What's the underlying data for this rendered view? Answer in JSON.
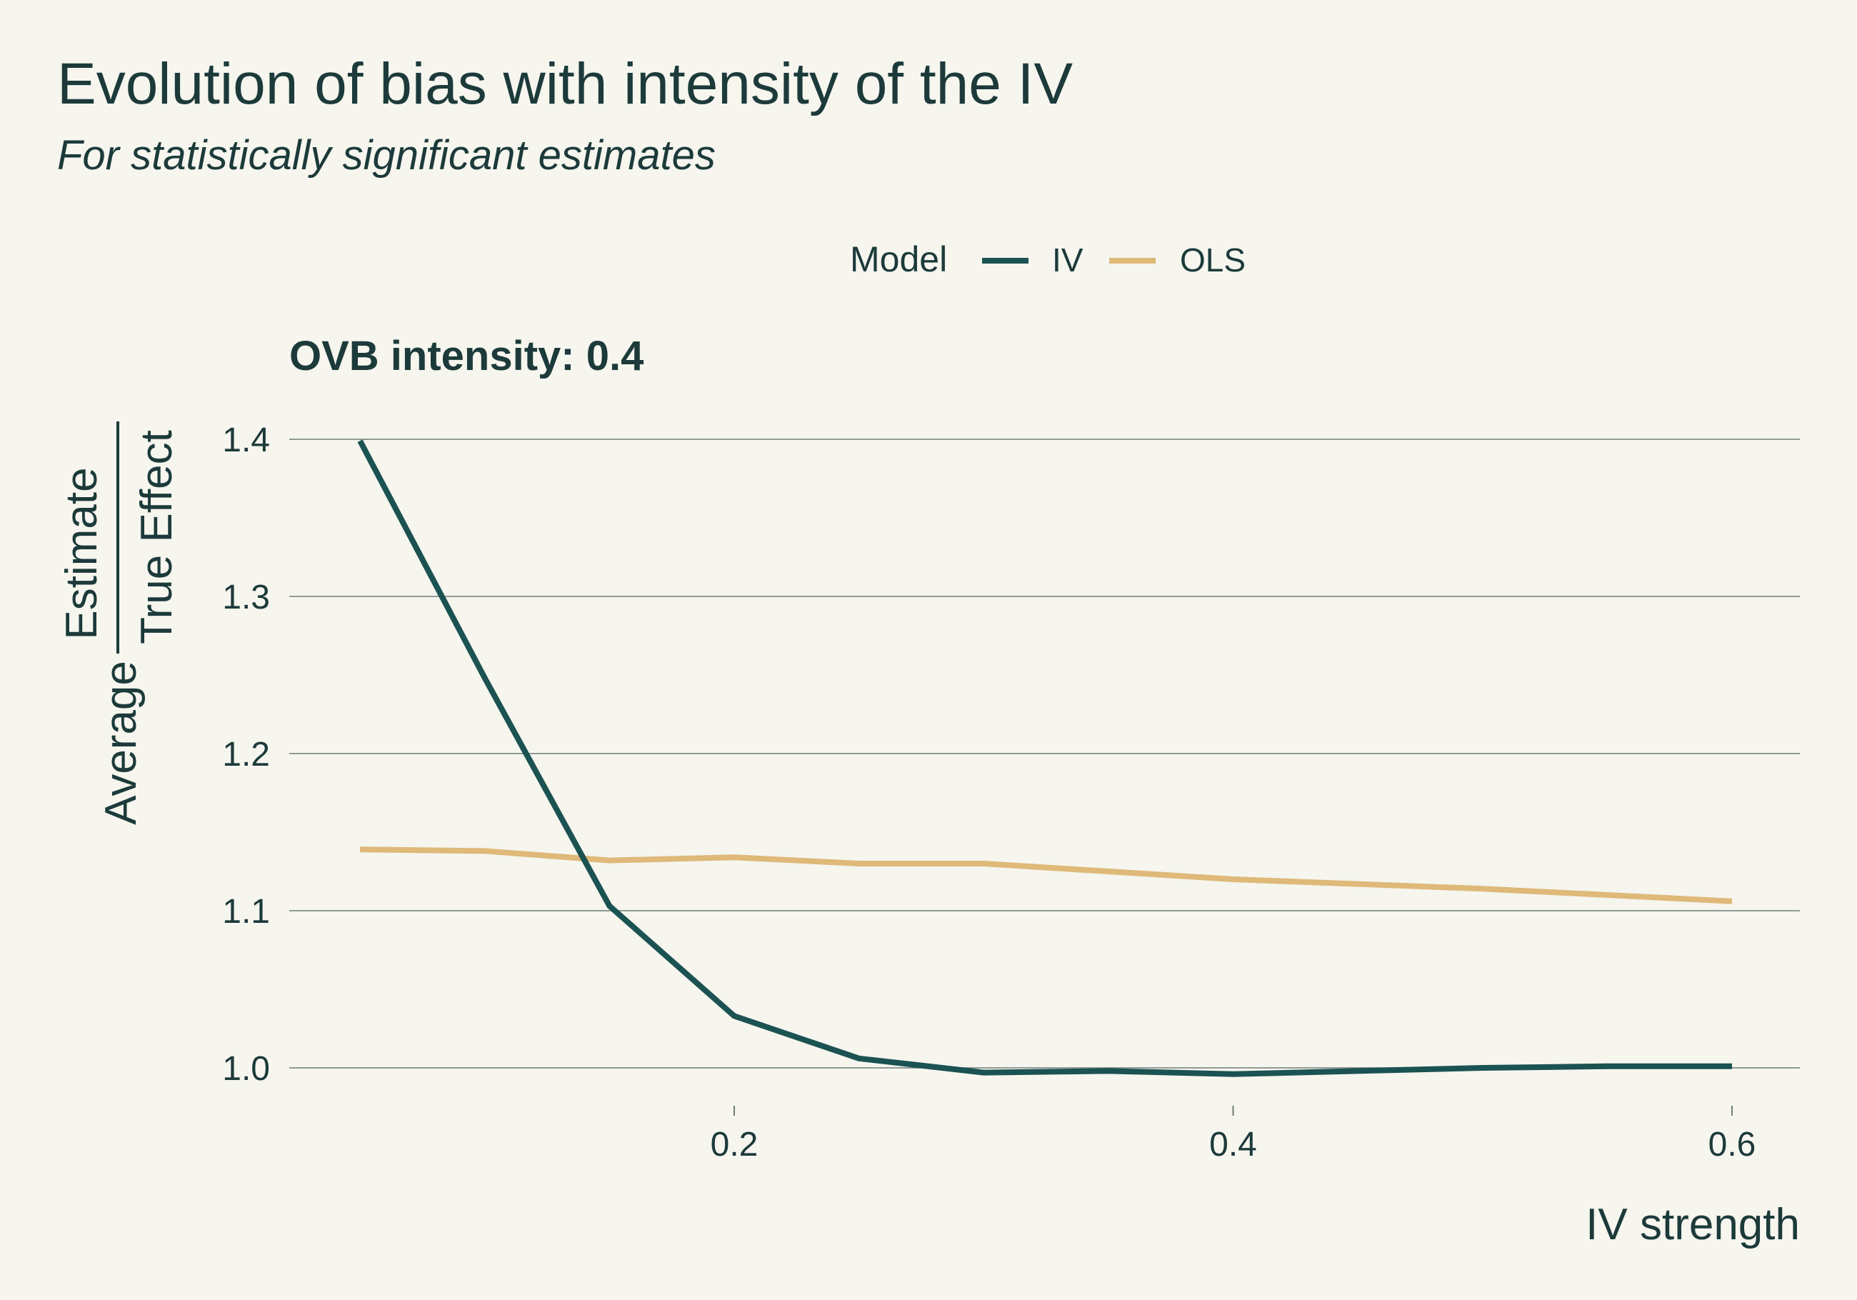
{
  "colors": {
    "background": "#f6f5ee",
    "text": "#1c3a3a",
    "iv": "#1b5252",
    "ols": "#deb978"
  },
  "chart_data": {
    "type": "line",
    "title": "Evolution of bias with intensity of the IV",
    "subtitle": "For statistically significant estimates",
    "facet_label": "OVB intensity: 0.4",
    "xlabel": "IV strength",
    "ylabel": {
      "prefix": "Average",
      "numerator": "Estimate",
      "denominator": "True Effect"
    },
    "legend": {
      "title": "Model",
      "position": "top",
      "entries": [
        "IV",
        "OLS"
      ]
    },
    "grid": "horizontal",
    "xlim": [
      0.05,
      0.6
    ],
    "ylim": [
      0.98,
      1.4
    ],
    "xticks": [
      0.2,
      0.4,
      0.6
    ],
    "xtick_labels": [
      "0.2",
      "0.4",
      "0.6"
    ],
    "yticks": [
      1.0,
      1.1,
      1.2,
      1.3,
      1.4
    ],
    "ytick_labels": [
      "1.0",
      "1.1",
      "1.2",
      "1.3",
      "1.4"
    ],
    "x": [
      0.05,
      0.1,
      0.15,
      0.2,
      0.25,
      0.3,
      0.35,
      0.4,
      0.45,
      0.5,
      0.55,
      0.6
    ],
    "series": [
      {
        "name": "IV",
        "color": "#1b5252",
        "values": [
          1.399,
          1.248,
          1.103,
          1.033,
          1.006,
          0.997,
          0.998,
          0.996,
          0.998,
          1.0,
          1.001,
          1.001
        ]
      },
      {
        "name": "OLS",
        "color": "#deb978",
        "values": [
          1.139,
          1.138,
          1.132,
          1.134,
          1.13,
          1.13,
          1.125,
          1.12,
          1.117,
          1.114,
          1.11,
          1.106
        ]
      }
    ]
  }
}
